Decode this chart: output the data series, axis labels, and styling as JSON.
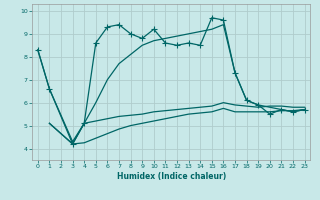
{
  "xlabel": "Humidex (Indice chaleur)",
  "xlim": [
    -0.5,
    23.5
  ],
  "ylim": [
    3.5,
    10.3
  ],
  "background_color": "#c8e8e8",
  "grid_color": "#b0cccc",
  "line_color": "#006666",
  "line1_x": [
    0,
    1,
    3,
    4,
    5,
    6,
    7,
    8,
    9,
    10,
    11,
    12,
    13,
    14,
    15,
    16,
    17,
    18,
    19,
    20,
    21,
    22,
    23
  ],
  "line1_y": [
    8.3,
    6.6,
    4.2,
    5.1,
    8.6,
    9.3,
    9.4,
    9.0,
    8.8,
    9.2,
    8.6,
    8.5,
    8.6,
    8.5,
    9.7,
    9.6,
    7.3,
    6.1,
    5.9,
    5.5,
    5.7,
    5.6,
    5.7
  ],
  "line2_x": [
    0,
    1,
    3,
    4,
    5,
    6,
    7,
    8,
    9,
    10,
    11,
    12,
    13,
    14,
    15,
    16,
    17,
    18,
    19,
    20,
    21,
    22,
    23
  ],
  "line2_y": [
    8.3,
    6.6,
    4.3,
    5.1,
    6.0,
    7.0,
    7.7,
    8.1,
    8.5,
    8.7,
    8.8,
    8.9,
    9.0,
    9.1,
    9.2,
    9.4,
    7.3,
    6.1,
    5.9,
    5.8,
    5.7,
    5.6,
    5.7
  ],
  "line3_x": [
    1,
    3,
    4,
    5,
    6,
    7,
    8,
    9,
    10,
    11,
    12,
    13,
    14,
    15,
    16,
    17,
    18,
    19,
    20,
    21,
    22,
    23
  ],
  "line3_y": [
    5.1,
    4.2,
    5.1,
    5.2,
    5.3,
    5.4,
    5.45,
    5.5,
    5.6,
    5.65,
    5.7,
    5.75,
    5.8,
    5.85,
    6.0,
    5.9,
    5.85,
    5.8,
    5.85,
    5.85,
    5.8,
    5.8
  ],
  "line4_x": [
    1,
    3,
    4,
    5,
    6,
    7,
    8,
    9,
    10,
    11,
    12,
    13,
    14,
    15,
    16,
    17,
    18,
    19,
    20,
    21,
    22,
    23
  ],
  "line4_y": [
    5.1,
    4.2,
    4.25,
    4.45,
    4.65,
    4.85,
    5.0,
    5.1,
    5.2,
    5.3,
    5.4,
    5.5,
    5.55,
    5.6,
    5.75,
    5.6,
    5.6,
    5.6,
    5.6,
    5.65,
    5.65,
    5.7
  ],
  "xtick_values": [
    0,
    1,
    2,
    3,
    4,
    5,
    6,
    7,
    8,
    9,
    10,
    11,
    12,
    13,
    14,
    15,
    16,
    17,
    18,
    19,
    20,
    21,
    22,
    23
  ],
  "ytick_values": [
    4,
    5,
    6,
    7,
    8,
    9,
    10
  ],
  "marker_size": 2.0,
  "line_width": 0.9
}
